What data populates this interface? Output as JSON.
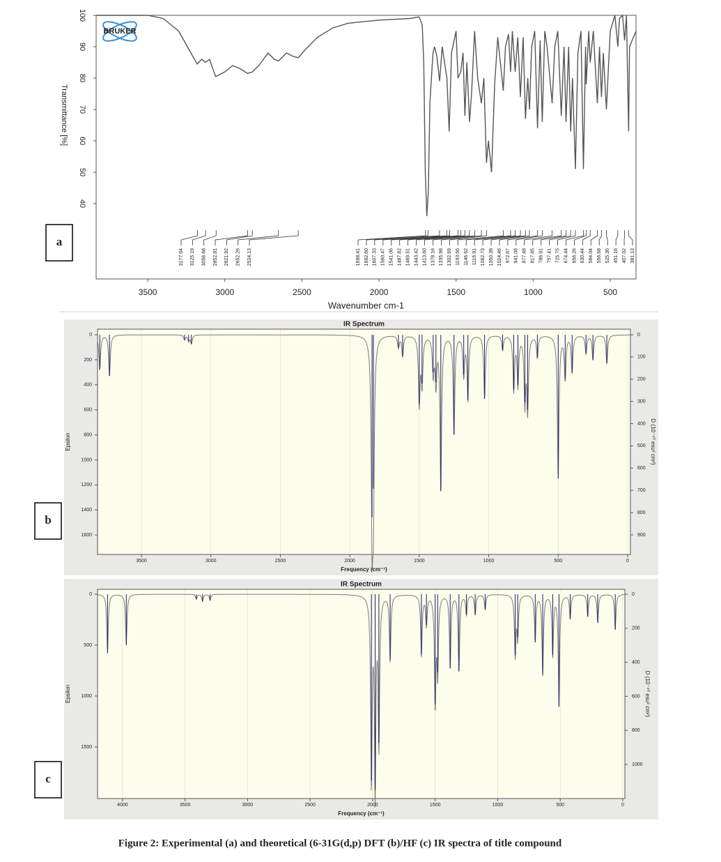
{
  "caption": "Figure 2: Experimental (a) and theoretical (6-31G(d,p) DFT (b)/HF (c) IR spectra of title compound",
  "chart_data": [
    {
      "type": "line",
      "label": "a",
      "logo": "BRUKER",
      "x_label": "Wavenumber cm-1",
      "y_label": "Transmittance [%]",
      "color": "#555555",
      "xlim": [
        3835,
        333
      ],
      "ylim": [
        16,
        100
      ],
      "xticks": [
        3500,
        3000,
        2500,
        2000,
        1500,
        1000,
        500
      ],
      "yticks": [
        40,
        50,
        60,
        70,
        80,
        90,
        100
      ],
      "x": [
        3835,
        3500,
        3400,
        3300,
        3220,
        3180,
        3150,
        3125,
        3100,
        3060,
        3000,
        2950,
        2900,
        2852,
        2821,
        2780,
        2720,
        2680,
        2652,
        2600,
        2560,
        2524,
        2480,
        2400,
        2300,
        2200,
        2000,
        1800,
        1740,
        1720,
        1710,
        1700,
        1690,
        1680,
        1670,
        1650,
        1640,
        1625,
        1607,
        1590,
        1560,
        1545,
        1530,
        1500,
        1488,
        1470,
        1455,
        1443,
        1430,
        1413,
        1400,
        1380,
        1360,
        1336,
        1320,
        1303,
        1290,
        1270,
        1250,
        1230,
        1194,
        1180,
        1160,
        1147,
        1135,
        1117,
        1100,
        1083,
        1065,
        1050,
        1035,
        1024,
        1010,
        990,
        972,
        955,
        941,
        925,
        910,
        877,
        860,
        840,
        818,
        800,
        787,
        770,
        757,
        745,
        726,
        710,
        690,
        674,
        660,
        656,
        640,
        630,
        610,
        584,
        570,
        557,
        545,
        525,
        500,
        470,
        451,
        440,
        420,
        407,
        395,
        381,
        375,
        333
      ],
      "values": [
        100,
        100,
        99,
        95,
        88,
        84.5,
        86,
        85,
        86,
        80.5,
        82,
        84,
        83,
        81.5,
        82,
        84,
        88,
        86,
        85.5,
        88,
        87,
        86.5,
        89,
        93,
        96,
        97.5,
        98.5,
        99,
        99.5,
        97,
        85,
        50,
        36,
        44,
        72,
        88,
        90,
        87,
        79,
        90,
        80,
        63,
        88,
        95,
        80,
        82,
        88,
        68,
        85,
        66,
        75,
        95,
        80,
        72,
        80,
        53,
        60,
        50,
        78,
        93,
        76,
        90,
        94,
        82,
        95,
        82,
        93,
        74,
        93,
        67,
        80,
        70,
        90,
        95,
        64,
        92,
        66,
        95,
        90,
        72,
        90,
        95,
        68,
        90,
        66,
        90,
        63,
        80,
        51,
        88,
        95,
        51,
        90,
        78,
        95,
        85,
        95,
        72,
        90,
        74,
        88,
        70,
        95,
        100,
        90,
        99,
        100,
        92,
        100,
        63,
        90,
        95
      ],
      "peaks": [
        3177.64,
        3125.19,
        3056.68,
        2852.81,
        2821.92,
        2652.26,
        2524.13,
        1698.41,
        {
          "value": 1682.6,
          "label": "1682.60"
        },
        1607.33,
        1560.47,
        1541.06,
        1487.82,
        1469.51,
        1443.42,
        {
          "value": 1413.6,
          "label": "1413.60"
        },
        1378.16,
        1335.98,
        1302.69,
        1193.56,
        1146.62,
        1116.91,
        1082.73,
        1050.38,
        1024.46,
        972.67,
        941.08,
        877.48,
        817.85,
        786.91,
        757.41,
        725.75,
        674.44,
        656.26,
        630.44,
        584.04,
        556.68,
        525.36,
        451.16,
        407.02,
        381.13
      ]
    },
    {
      "type": "stick",
      "label": "b",
      "title": "IR Spectrum",
      "x_label": "Frequency (cm⁻¹)",
      "y_label": "Epsilon",
      "y2_label": "D (10⁻⁴⁰ esu² cm²)",
      "color": "#1a1a6e",
      "envelope_color": "#7a7a7a",
      "grid": true,
      "xlim": [
        3816,
        -20
      ],
      "ylim": [
        -45,
        1756
      ],
      "y2lim": [
        -25,
        988
      ],
      "xticks": [
        3500,
        3000,
        2500,
        2000,
        1500,
        1000,
        500,
        0
      ],
      "yticks": [
        0,
        200,
        400,
        600,
        800,
        1000,
        1200,
        1400,
        1600
      ],
      "y2ticks": [
        0,
        100,
        200,
        300,
        400,
        500,
        600,
        700,
        800,
        900
      ],
      "x": [
        3800,
        3730,
        3190,
        3160,
        3140,
        1840,
        1830,
        1650,
        1620,
        1500,
        1480,
        1400,
        1380,
        1345,
        1250,
        1180,
        1150,
        1030,
        900,
        820,
        790,
        740,
        720,
        650,
        500,
        450,
        400,
        300,
        250,
        150
      ],
      "values": [
        280,
        330,
        40,
        50,
        70,
        1460,
        1230,
        100,
        170,
        550,
        390,
        300,
        380,
        1250,
        800,
        320,
        520,
        510,
        120,
        440,
        400,
        540,
        600,
        180,
        1150,
        350,
        300,
        150,
        200,
        230
      ]
    },
    {
      "type": "stick",
      "label": "c",
      "title": "IR Spectrum",
      "x_label": "Frequency (cm⁻¹)",
      "y_label": "Epsilon",
      "y2_label": "D (10⁻⁴⁰ esu² cm²)",
      "color": "#1a1a6e",
      "envelope_color": "#7a7a7a",
      "grid": true,
      "xlim": [
        4200,
        -17
      ],
      "ylim": [
        -48,
        2007
      ],
      "y2lim": [
        -29,
        1201
      ],
      "xticks": [
        4000,
        3500,
        3000,
        2500,
        2000,
        1500,
        1000,
        500,
        0
      ],
      "yticks": [
        0,
        500,
        1000,
        1500
      ],
      "y2ticks": [
        0,
        200,
        400,
        600,
        800,
        1000
      ],
      "x": [
        4120,
        3970,
        3410,
        3360,
        3300,
        2010,
        1980,
        1950,
        1860,
        1610,
        1570,
        1500,
        1480,
        1380,
        1310,
        1250,
        1180,
        1100,
        860,
        840,
        700,
        640,
        560,
        510,
        420,
        280,
        200,
        60
      ],
      "values": [
        580,
        500,
        50,
        70,
        60,
        1830,
        1920,
        1460,
        650,
        600,
        300,
        1080,
        770,
        730,
        760,
        200,
        200,
        150,
        600,
        420,
        470,
        790,
        600,
        1100,
        240,
        220,
        280,
        350
      ]
    }
  ]
}
